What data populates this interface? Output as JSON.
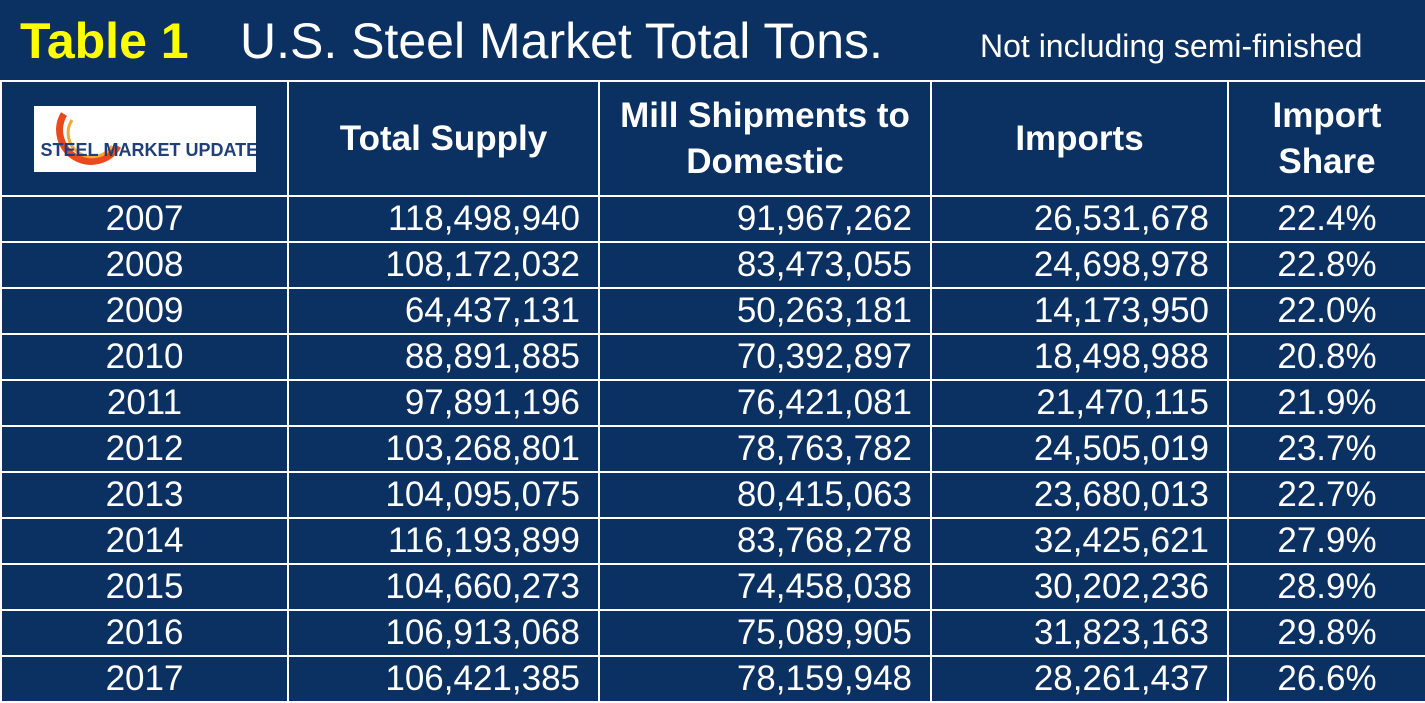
{
  "header": {
    "table_label": "Table 1",
    "title": "U.S. Steel Market Total Tons.",
    "subtitle": "Not including semi-finished"
  },
  "logo": {
    "word1": "STEEL",
    "word2": "MARKET UPDATE"
  },
  "columns": [
    "Total Supply",
    "Mill Shipments to Domestic",
    "Imports",
    "Import Share"
  ],
  "rows": [
    {
      "year": "2007",
      "total_supply": "118,498,940",
      "mill_shipments": "91,967,262",
      "imports": "26,531,678",
      "import_share": "22.4%"
    },
    {
      "year": "2008",
      "total_supply": "108,172,032",
      "mill_shipments": "83,473,055",
      "imports": "24,698,978",
      "import_share": "22.8%"
    },
    {
      "year": "2009",
      "total_supply": "64,437,131",
      "mill_shipments": "50,263,181",
      "imports": "14,173,950",
      "import_share": "22.0%"
    },
    {
      "year": "2010",
      "total_supply": "88,891,885",
      "mill_shipments": "70,392,897",
      "imports": "18,498,988",
      "import_share": "20.8%"
    },
    {
      "year": "2011",
      "total_supply": "97,891,196",
      "mill_shipments": "76,421,081",
      "imports": "21,470,115",
      "import_share": "21.9%"
    },
    {
      "year": "2012",
      "total_supply": "103,268,801",
      "mill_shipments": "78,763,782",
      "imports": "24,505,019",
      "import_share": "23.7%"
    },
    {
      "year": "2013",
      "total_supply": "104,095,075",
      "mill_shipments": "80,415,063",
      "imports": "23,680,013",
      "import_share": "22.7%"
    },
    {
      "year": "2014",
      "total_supply": "116,193,899",
      "mill_shipments": "83,768,278",
      "imports": "32,425,621",
      "import_share": "27.9%"
    },
    {
      "year": "2015",
      "total_supply": "104,660,273",
      "mill_shipments": "74,458,038",
      "imports": "30,202,236",
      "import_share": "28.9%"
    },
    {
      "year": "2016",
      "total_supply": "106,913,068",
      "mill_shipments": "75,089,905",
      "imports": "31,823,163",
      "import_share": "29.8%"
    },
    {
      "year": "2017",
      "total_supply": "106,421,385",
      "mill_shipments": "78,159,948",
      "imports": "28,261,437",
      "import_share": "26.6%"
    }
  ],
  "colors": {
    "background": "#0b3062",
    "label_yellow": "#ffff00",
    "grid": "#ffffff",
    "logo_orange": "#e8491d",
    "logo_navy": "#1e3f7a"
  }
}
